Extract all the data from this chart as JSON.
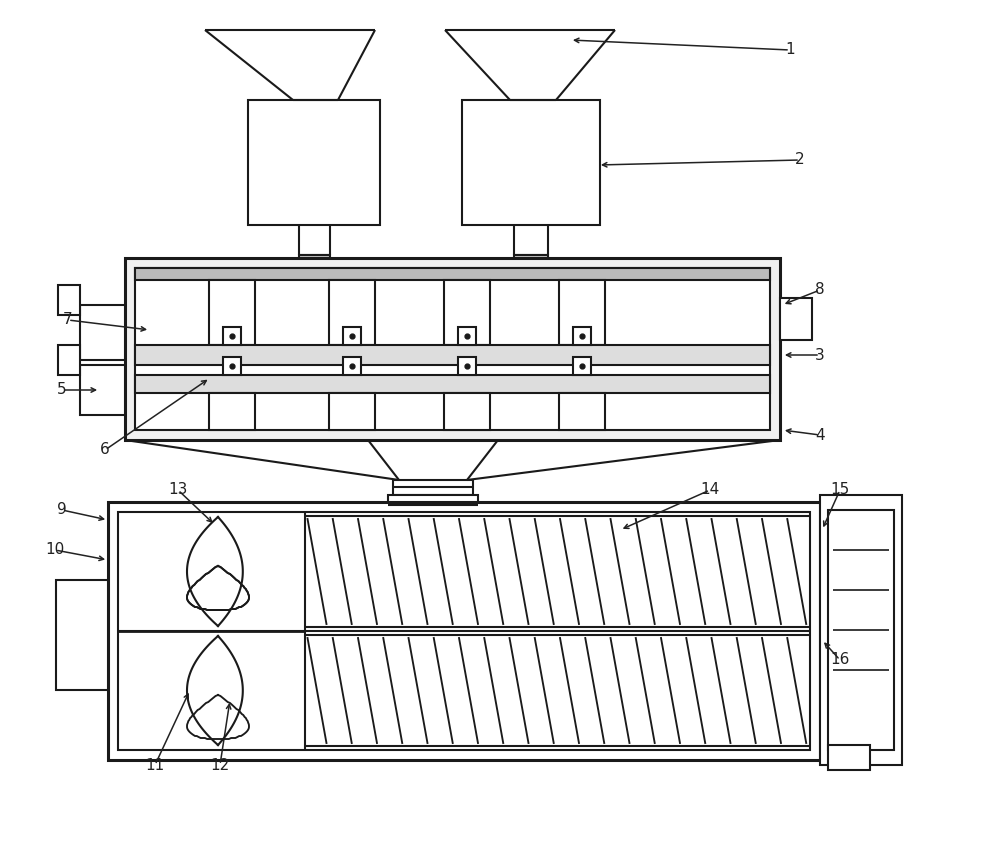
{
  "bg_color": "#ffffff",
  "line_color": "#1a1a1a",
  "lw": 1.5,
  "tlw": 2.2,
  "ac": "#222222",
  "fs": 11
}
